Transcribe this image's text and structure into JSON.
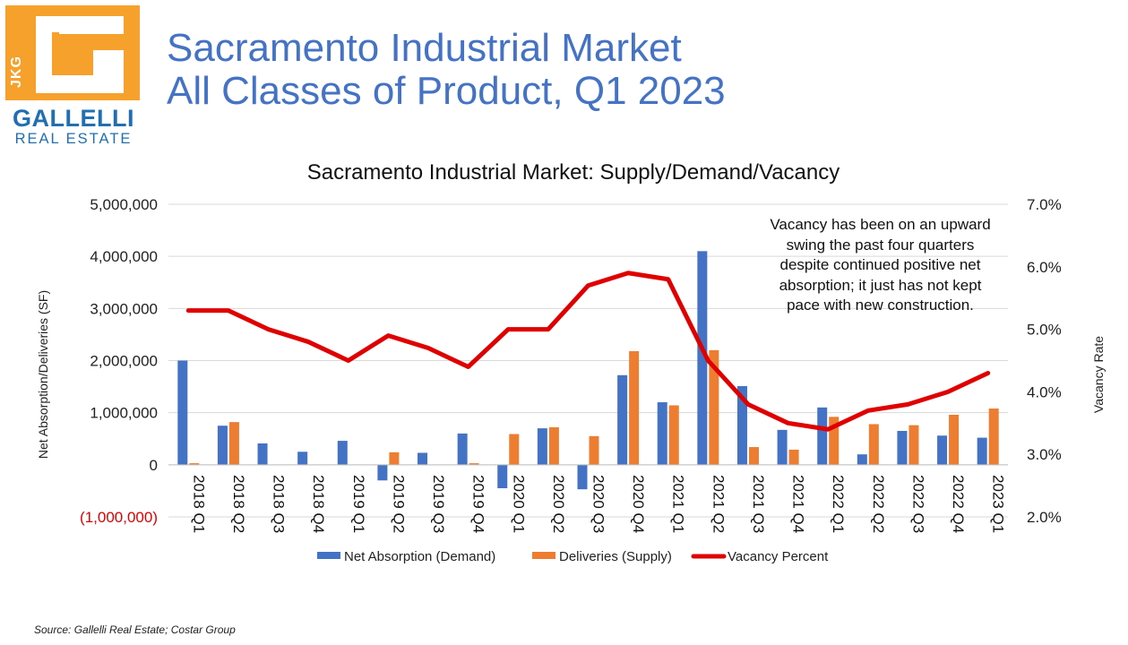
{
  "logo": {
    "mark": "JKG",
    "name": "GALLELLI",
    "sub": "REAL ESTATE"
  },
  "header": {
    "title_line1": "Sacramento Industrial Market",
    "title_line2": "All Classes of Product, Q1 2023"
  },
  "source": "Source:  Gallelli Real Estate; Costar Group",
  "colors": {
    "demand": "#4472c4",
    "supply": "#ed7d31",
    "vacancy": "#e00000",
    "negative": "#e00000"
  },
  "chart_data": {
    "type": "bar",
    "title": "Sacramento Industrial Market: Supply/Demand/Vacancy",
    "ylabel": "Net Absorption/Deliveries (SF)",
    "y2label": "Vacancy Rate",
    "ylim": [
      -1000000,
      5000000
    ],
    "y2lim": [
      2.0,
      7.0
    ],
    "y_ticks": [
      "5,000,000",
      "4,000,000",
      "3,000,000",
      "2,000,000",
      "1,000,000",
      "0",
      "(1,000,000)"
    ],
    "y_tick_values": [
      5000000,
      4000000,
      3000000,
      2000000,
      1000000,
      0,
      -1000000
    ],
    "y2_ticks": [
      "7.0%",
      "6.0%",
      "5.0%",
      "4.0%",
      "3.0%",
      "2.0%"
    ],
    "y2_tick_values": [
      7.0,
      6.0,
      5.0,
      4.0,
      3.0,
      2.0
    ],
    "categories": [
      "2018 Q1",
      "2018 Q2",
      "2018 Q3",
      "2018 Q4",
      "2019 Q1",
      "2019 Q2",
      "2019 Q3",
      "2019 Q4",
      "2020 Q1",
      "2020 Q2",
      "2020 Q3",
      "2020 Q4",
      "2021 Q1",
      "2021 Q2",
      "2021 Q3",
      "2021 Q4",
      "2022 Q1",
      "2022 Q2",
      "2022 Q3",
      "2022 Q4",
      "2023 Q1"
    ],
    "series": [
      {
        "name": "Net Absorption (Demand)",
        "type": "bar",
        "values": [
          2000000,
          750000,
          410000,
          250000,
          460000,
          -300000,
          230000,
          600000,
          -450000,
          700000,
          -470000,
          1720000,
          1200000,
          4100000,
          1510000,
          670000,
          1100000,
          200000,
          650000,
          560000,
          520000
        ]
      },
      {
        "name": "Deliveries (Supply)",
        "type": "bar",
        "values": [
          30000,
          820000,
          0,
          0,
          0,
          240000,
          0,
          30000,
          590000,
          720000,
          550000,
          2180000,
          1140000,
          2200000,
          340000,
          290000,
          920000,
          780000,
          760000,
          960000,
          1080000
        ]
      },
      {
        "name": "Vacancy Percent",
        "type": "line",
        "axis": "secondary",
        "values": [
          5.3,
          5.3,
          5.0,
          4.8,
          4.5,
          4.9,
          4.7,
          4.4,
          5.0,
          5.0,
          5.7,
          5.9,
          5.8,
          4.5,
          3.8,
          3.5,
          3.4,
          3.7,
          3.8,
          4.0,
          4.3
        ]
      }
    ],
    "annotation": "Vacancy has been on an upward swing the past four quarters despite continued positive net absorption; it just has not kept pace with new construction.",
    "legend_position": "bottom"
  }
}
